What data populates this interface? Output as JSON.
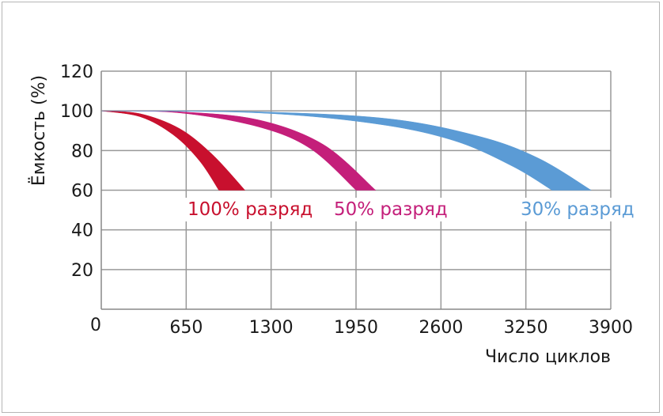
{
  "chart_data": {
    "type": "area",
    "title": "",
    "xlabel": "Число циклов",
    "ylabel": "Ёмкость (%)",
    "xlim": [
      0,
      3900
    ],
    "ylim": [
      0,
      120
    ],
    "x_ticks": [
      650,
      1300,
      1950,
      2600,
      3250,
      3900
    ],
    "y_ticks": [
      20,
      40,
      60,
      80,
      100,
      120
    ],
    "origin_label": "0",
    "grid": true,
    "series": [
      {
        "name": "100% разряд",
        "color": "#c8102e",
        "upper": [
          [
            0,
            100
          ],
          [
            300,
            98.5
          ],
          [
            600,
            91
          ],
          [
            850,
            78
          ],
          [
            1100,
            60
          ]
        ],
        "lower": [
          [
            0,
            100
          ],
          [
            300,
            97
          ],
          [
            550,
            88
          ],
          [
            750,
            75
          ],
          [
            900,
            60
          ]
        ]
      },
      {
        "name": "50% разряд",
        "color": "#c41f7a",
        "upper": [
          [
            0,
            100
          ],
          [
            600,
            99.5
          ],
          [
            1200,
            95.5
          ],
          [
            1700,
            83
          ],
          [
            2100,
            60
          ]
        ],
        "lower": [
          [
            0,
            100
          ],
          [
            600,
            99
          ],
          [
            1200,
            92
          ],
          [
            1600,
            81
          ],
          [
            1950,
            60
          ]
        ]
      },
      {
        "name": "30% разряд",
        "color": "#5b9bd5",
        "upper": [
          [
            0,
            100
          ],
          [
            1200,
            99.5
          ],
          [
            2200,
            96
          ],
          [
            2900,
            87
          ],
          [
            3350,
            76
          ],
          [
            3750,
            60
          ]
        ],
        "lower": [
          [
            0,
            100
          ],
          [
            1200,
            99
          ],
          [
            2100,
            93.5
          ],
          [
            2700,
            85
          ],
          [
            3150,
            72
          ],
          [
            3450,
            60
          ]
        ]
      }
    ]
  }
}
